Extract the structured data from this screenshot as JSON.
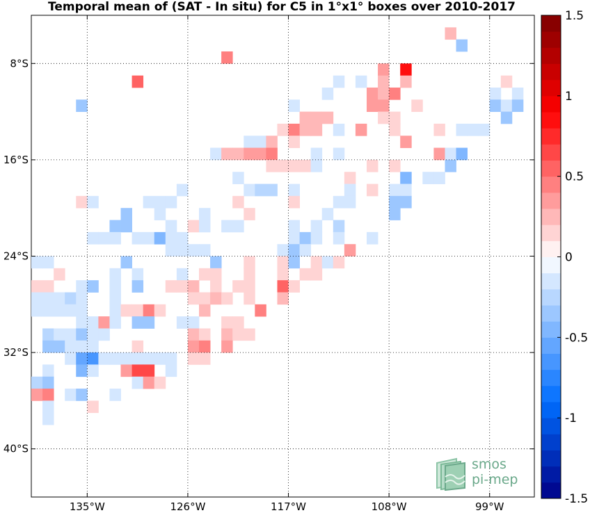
{
  "chart_data": {
    "type": "heatmap",
    "title": "Temporal mean of (SAT - In situ) for C5 in 1°x1° boxes over 2010-2017",
    "xlabel": "",
    "ylabel": "",
    "xlim": [
      -140,
      -95
    ],
    "ylim": [
      -44,
      -4
    ],
    "cell_size_deg": 1,
    "x_ticks": [
      -135,
      -126,
      -117,
      -108,
      -99
    ],
    "x_tick_labels": [
      "135°W",
      "126°W",
      "117°W",
      "108°W",
      "99°W"
    ],
    "y_ticks": [
      -8,
      -16,
      -24,
      -32,
      -40
    ],
    "y_tick_labels": [
      "8°S",
      "16°S",
      "24°S",
      "32°S",
      "40°S"
    ],
    "grid": "dotted",
    "colorbar": {
      "range": [
        -1.5,
        1.5
      ],
      "levels": 30,
      "ticks": [
        1.5,
        1,
        0.5,
        0,
        -0.5,
        -1,
        -1.5
      ],
      "tick_labels": [
        "1.5",
        "1",
        "0.5",
        "0",
        "-0.5",
        "-1",
        "-1.5"
      ],
      "colormap": "blue-white-red"
    },
    "cells": [
      [
        -102.5,
        -5.5,
        0.25
      ],
      [
        -101.5,
        -6.5,
        -0.35
      ],
      [
        -122.5,
        -7.5,
        0.4
      ],
      [
        -108.5,
        -8.5,
        0.3
      ],
      [
        -106.5,
        -8.5,
        0.85
      ],
      [
        -130.5,
        -9.5,
        0.55
      ],
      [
        -112.5,
        -9.5,
        -0.15
      ],
      [
        -110.5,
        -9.5,
        -0.1
      ],
      [
        -108.5,
        -9.5,
        0.25
      ],
      [
        -106.5,
        -9.5,
        0.2
      ],
      [
        -97.5,
        -9.5,
        0.15
      ],
      [
        -113.5,
        -10.5,
        -0.2
      ],
      [
        -109.5,
        -10.5,
        0.35
      ],
      [
        -108.5,
        -10.5,
        0.25
      ],
      [
        -107.5,
        -10.5,
        0.45
      ],
      [
        -98.5,
        -10.5,
        -0.1
      ],
      [
        -96.5,
        -10.5,
        -0.1
      ],
      [
        -135.5,
        -11.5,
        -0.4
      ],
      [
        -116.5,
        -11.5,
        -0.1
      ],
      [
        -109.5,
        -11.5,
        0.35
      ],
      [
        -108.5,
        -11.5,
        0.3
      ],
      [
        -105.5,
        -11.5,
        0.15
      ],
      [
        -98.5,
        -11.5,
        -0.4
      ],
      [
        -97.5,
        -11.5,
        -0.15
      ],
      [
        -96.5,
        -11.5,
        -0.3
      ],
      [
        -115.5,
        -12.5,
        0.25
      ],
      [
        -114.5,
        -12.5,
        0.25
      ],
      [
        -113.5,
        -12.5,
        0.25
      ],
      [
        -108.5,
        -12.5,
        0.15
      ],
      [
        -107.5,
        -12.5,
        0.15
      ],
      [
        -97.5,
        -12.5,
        -0.3
      ],
      [
        -117.5,
        -13.5,
        0.15
      ],
      [
        -116.5,
        -13.5,
        0.45
      ],
      [
        -115.5,
        -13.5,
        0.25
      ],
      [
        -114.5,
        -13.5,
        0.25
      ],
      [
        -112.5,
        -13.5,
        -0.15
      ],
      [
        -110.5,
        -13.5,
        0.3
      ],
      [
        -107.5,
        -13.5,
        0.15
      ],
      [
        -103.5,
        -13.5,
        0.15
      ],
      [
        -101.5,
        -13.5,
        -0.1
      ],
      [
        -100.5,
        -13.5,
        -0.1
      ],
      [
        -99.5,
        -13.5,
        -0.2
      ],
      [
        -120.5,
        -14.5,
        -0.1
      ],
      [
        -119.5,
        -14.5,
        -0.1
      ],
      [
        -118.5,
        -14.5,
        0.2
      ],
      [
        -116.5,
        -14.5,
        0.1
      ],
      [
        -106.5,
        -14.5,
        0.3
      ],
      [
        -123.5,
        -15.5,
        -0.15
      ],
      [
        -122.5,
        -15.5,
        0.2
      ],
      [
        -121.5,
        -15.5,
        0.2
      ],
      [
        -120.5,
        -15.5,
        0.35
      ],
      [
        -119.5,
        -15.5,
        0.35
      ],
      [
        -118.5,
        -15.5,
        0.4
      ],
      [
        -114.5,
        -15.5,
        -0.1
      ],
      [
        -112.5,
        -15.5,
        -0.15
      ],
      [
        -103.5,
        -15.5,
        0.3
      ],
      [
        -102.5,
        -15.5,
        -0.2
      ],
      [
        -101.5,
        -15.5,
        -0.45
      ],
      [
        -118.5,
        -16.5,
        0.1
      ],
      [
        -117.5,
        -16.5,
        0.1
      ],
      [
        -116.5,
        -16.5,
        0.15
      ],
      [
        -115.5,
        -16.5,
        0.15
      ],
      [
        -114.5,
        -16.5,
        -0.1
      ],
      [
        -109.5,
        -16.5,
        0.15
      ],
      [
        -107.5,
        -16.5,
        0.15
      ],
      [
        -102.5,
        -16.5,
        -0.3
      ],
      [
        -121.5,
        -17.5,
        -0.1
      ],
      [
        -111.5,
        -17.5,
        0.15
      ],
      [
        -106.5,
        -17.5,
        -0.45
      ],
      [
        -104.5,
        -17.5,
        -0.1
      ],
      [
        -103.5,
        -17.5,
        -0.1
      ],
      [
        -126.5,
        -18.5,
        -0.1
      ],
      [
        -120.5,
        -18.5,
        -0.15
      ],
      [
        -119.5,
        -18.5,
        -0.25
      ],
      [
        -118.5,
        -18.5,
        -0.25
      ],
      [
        -116.5,
        -18.5,
        -0.15
      ],
      [
        -111.5,
        -18.5,
        -0.15
      ],
      [
        -109.5,
        -18.5,
        0.15
      ],
      [
        -107.5,
        -18.5,
        -0.1
      ],
      [
        -106.5,
        -18.5,
        -0.2
      ],
      [
        -135.5,
        -19.5,
        0.15
      ],
      [
        -134.5,
        -19.5,
        -0.1
      ],
      [
        -129.5,
        -19.5,
        -0.1
      ],
      [
        -128.5,
        -19.5,
        -0.2
      ],
      [
        -127.5,
        -19.5,
        -0.2
      ],
      [
        -121.5,
        -19.5,
        0.1
      ],
      [
        -116.5,
        -19.5,
        0.1
      ],
      [
        -112.5,
        -19.5,
        -0.1
      ],
      [
        -111.5,
        -19.5,
        -0.1
      ],
      [
        -107.5,
        -19.5,
        -0.3
      ],
      [
        -106.5,
        -19.5,
        -0.3
      ],
      [
        -131.5,
        -20.5,
        -0.3
      ],
      [
        -128.5,
        -20.5,
        -0.1
      ],
      [
        -124.5,
        -20.5,
        -0.1
      ],
      [
        -120.5,
        -20.5,
        0.15
      ],
      [
        -113.5,
        -20.5,
        -0.1
      ],
      [
        -107.5,
        -20.5,
        -0.4
      ],
      [
        -132.5,
        -21.5,
        -0.3
      ],
      [
        -131.5,
        -21.5,
        -0.3
      ],
      [
        -127.5,
        -21.5,
        -0.1
      ],
      [
        -125.5,
        -21.5,
        0.15
      ],
      [
        -124.5,
        -21.5,
        -0.1
      ],
      [
        -122.5,
        -21.5,
        -0.15
      ],
      [
        -121.5,
        -21.5,
        -0.15
      ],
      [
        -116.5,
        -21.5,
        -0.15
      ],
      [
        -114.5,
        -21.5,
        -0.2
      ],
      [
        -112.5,
        -21.5,
        -0.25
      ],
      [
        -134.5,
        -22.5,
        -0.1
      ],
      [
        -133.5,
        -22.5,
        -0.1
      ],
      [
        -132.5,
        -22.5,
        -0.15
      ],
      [
        -130.5,
        -22.5,
        -0.15
      ],
      [
        -129.5,
        -22.5,
        -0.15
      ],
      [
        -128.5,
        -22.5,
        -0.45
      ],
      [
        -127.5,
        -22.5,
        -0.2
      ],
      [
        -126.5,
        -22.5,
        -0.1
      ],
      [
        -116.5,
        -22.5,
        -0.2
      ],
      [
        -115.5,
        -22.5,
        -0.3
      ],
      [
        -114.5,
        -22.5,
        -0.15
      ],
      [
        -112.5,
        -22.5,
        -0.2
      ],
      [
        -109.5,
        -22.5,
        -0.1
      ],
      [
        -127.5,
        -23.5,
        -0.15
      ],
      [
        -126.5,
        -23.5,
        -0.15
      ],
      [
        -125.5,
        -23.5,
        -0.15
      ],
      [
        -124.5,
        -23.5,
        -0.15
      ],
      [
        -117.5,
        -23.5,
        -0.15
      ],
      [
        -116.5,
        -23.5,
        -0.4
      ],
      [
        -115.5,
        -23.5,
        -0.2
      ],
      [
        -111.5,
        -23.5,
        0.3
      ],
      [
        -139.5,
        -24.5,
        -0.1
      ],
      [
        -138.5,
        -24.5,
        -0.1
      ],
      [
        -131.5,
        -24.5,
        -0.4
      ],
      [
        -123.5,
        -24.5,
        -0.3
      ],
      [
        -120.5,
        -24.5,
        0.15
      ],
      [
        -117.5,
        -24.5,
        0.1
      ],
      [
        -116.5,
        -24.5,
        -0.4
      ],
      [
        -114.5,
        -24.5,
        0.1
      ],
      [
        -113.5,
        -24.5,
        -0.1
      ],
      [
        -112.5,
        -24.5,
        0.1
      ],
      [
        -137.5,
        -25.5,
        0.15
      ],
      [
        -132.5,
        -25.5,
        -0.1
      ],
      [
        -130.5,
        -25.5,
        -0.1
      ],
      [
        -126.5,
        -25.5,
        -0.2
      ],
      [
        -124.5,
        -25.5,
        0.15
      ],
      [
        -123.5,
        -25.5,
        0.1
      ],
      [
        -120.5,
        -25.5,
        0.15
      ],
      [
        -117.5,
        -25.5,
        0.1
      ],
      [
        -115.5,
        -25.5,
        0.15
      ],
      [
        -114.5,
        -25.5,
        0.1
      ],
      [
        -139.5,
        -26.5,
        0.1
      ],
      [
        -138.5,
        -26.5,
        0.1
      ],
      [
        -135.5,
        -26.5,
        -0.15
      ],
      [
        -134.5,
        -26.5,
        -0.4
      ],
      [
        -132.5,
        -26.5,
        -0.1
      ],
      [
        -130.5,
        -26.5,
        -0.35
      ],
      [
        -127.5,
        -26.5,
        0.1
      ],
      [
        -126.5,
        -26.5,
        0.15
      ],
      [
        -125.5,
        -26.5,
        0.25
      ],
      [
        -123.5,
        -26.5,
        0.1
      ],
      [
        -121.5,
        -26.5,
        0.1
      ],
      [
        -120.5,
        -26.5,
        0.1
      ],
      [
        -117.5,
        -26.5,
        0.55
      ],
      [
        -116.5,
        -26.5,
        0.15
      ],
      [
        -139.5,
        -27.5,
        -0.15
      ],
      [
        -138.5,
        -27.5,
        -0.15
      ],
      [
        -137.5,
        -27.5,
        -0.15
      ],
      [
        -136.5,
        -27.5,
        -0.25
      ],
      [
        -135.5,
        -27.5,
        -0.15
      ],
      [
        -132.5,
        -27.5,
        -0.1
      ],
      [
        -125.5,
        -27.5,
        0.15
      ],
      [
        -124.5,
        -27.5,
        0.15
      ],
      [
        -123.5,
        -27.5,
        0.2
      ],
      [
        -122.5,
        -27.5,
        0.15
      ],
      [
        -120.5,
        -27.5,
        0.1
      ],
      [
        -117.5,
        -27.5,
        0.25
      ],
      [
        -139.5,
        -28.5,
        -0.15
      ],
      [
        -138.5,
        -28.5,
        -0.15
      ],
      [
        -137.5,
        -28.5,
        -0.15
      ],
      [
        -136.5,
        -28.5,
        -0.15
      ],
      [
        -135.5,
        -28.5,
        -0.15
      ],
      [
        -132.5,
        -28.5,
        -0.1
      ],
      [
        -131.5,
        -28.5,
        0.15
      ],
      [
        -130.5,
        -28.5,
        0.15
      ],
      [
        -129.5,
        -28.5,
        0.45
      ],
      [
        -128.5,
        -28.5,
        0.15
      ],
      [
        -124.5,
        -28.5,
        0.25
      ],
      [
        -119.5,
        -28.5,
        0.45
      ],
      [
        -135.5,
        -29.5,
        -0.2
      ],
      [
        -134.5,
        -29.5,
        -0.2
      ],
      [
        -133.5,
        -29.5,
        0.35
      ],
      [
        -132.5,
        -29.5,
        -0.2
      ],
      [
        -130.5,
        -29.5,
        -0.3
      ],
      [
        -129.5,
        -29.5,
        -0.3
      ],
      [
        -126.5,
        -29.5,
        -0.1
      ],
      [
        -125.5,
        -29.5,
        -0.1
      ],
      [
        -122.5,
        -29.5,
        0.1
      ],
      [
        -121.5,
        -29.5,
        0.15
      ],
      [
        -138.5,
        -30.5,
        -0.25
      ],
      [
        -137.5,
        -30.5,
        -0.15
      ],
      [
        -136.5,
        -30.5,
        -0.1
      ],
      [
        -135.5,
        -30.5,
        -0.3
      ],
      [
        -134.5,
        -30.5,
        -0.2
      ],
      [
        -133.5,
        -30.5,
        -0.15
      ],
      [
        -125.5,
        -30.5,
        0.25
      ],
      [
        -124.5,
        -30.5,
        0.15
      ],
      [
        -122.5,
        -30.5,
        0.25
      ],
      [
        -121.5,
        -30.5,
        0.15
      ],
      [
        -120.5,
        -30.5,
        0.15
      ],
      [
        -138.5,
        -31.5,
        -0.35
      ],
      [
        -137.5,
        -31.5,
        -0.35
      ],
      [
        -136.5,
        -31.5,
        -0.2
      ],
      [
        -135.5,
        -31.5,
        -0.1
      ],
      [
        -134.5,
        -31.5,
        -0.1
      ],
      [
        -130.5,
        -31.5,
        0.15
      ],
      [
        -125.5,
        -31.5,
        0.3
      ],
      [
        -124.5,
        -31.5,
        0.45
      ],
      [
        -122.5,
        -31.5,
        0.3
      ],
      [
        -136.5,
        -32.5,
        -0.1
      ],
      [
        -135.5,
        -32.5,
        -0.55
      ],
      [
        -134.5,
        -32.5,
        -0.7
      ],
      [
        -133.5,
        -32.5,
        -0.1
      ],
      [
        -132.5,
        -32.5,
        -0.1
      ],
      [
        -131.5,
        -32.5,
        -0.1
      ],
      [
        -130.5,
        -32.5,
        -0.1
      ],
      [
        -129.5,
        -32.5,
        -0.1
      ],
      [
        -128.5,
        -32.5,
        -0.2
      ],
      [
        -127.5,
        -32.5,
        -0.15
      ],
      [
        -125.5,
        -32.5,
        0.15
      ],
      [
        -124.5,
        -32.5,
        0.15
      ],
      [
        -138.5,
        -33.5,
        -0.1
      ],
      [
        -135.5,
        -33.5,
        -0.45
      ],
      [
        -134.5,
        -33.5,
        -0.1
      ],
      [
        -131.5,
        -33.5,
        0.35
      ],
      [
        -130.5,
        -33.5,
        0.65
      ],
      [
        -129.5,
        -33.5,
        0.65
      ],
      [
        -127.5,
        -33.5,
        -0.15
      ],
      [
        -139.5,
        -34.5,
        -0.25
      ],
      [
        -138.5,
        -34.5,
        -0.35
      ],
      [
        -130.5,
        -34.5,
        -0.1
      ],
      [
        -129.5,
        -34.5,
        0.3
      ],
      [
        -128.5,
        -34.5,
        0.15
      ],
      [
        -139.5,
        -35.5,
        0.35
      ],
      [
        -138.5,
        -35.5,
        0.45
      ],
      [
        -136.5,
        -35.5,
        -0.1
      ],
      [
        -135.5,
        -35.5,
        -0.3
      ],
      [
        -132.5,
        -35.5,
        -0.1
      ],
      [
        -138.5,
        -36.5,
        -0.1
      ],
      [
        -134.5,
        -36.5,
        0.15
      ],
      [
        -138.5,
        -37.5,
        -0.15
      ]
    ]
  },
  "watermark": {
    "line1": "smos",
    "line2": "pi-mep"
  }
}
